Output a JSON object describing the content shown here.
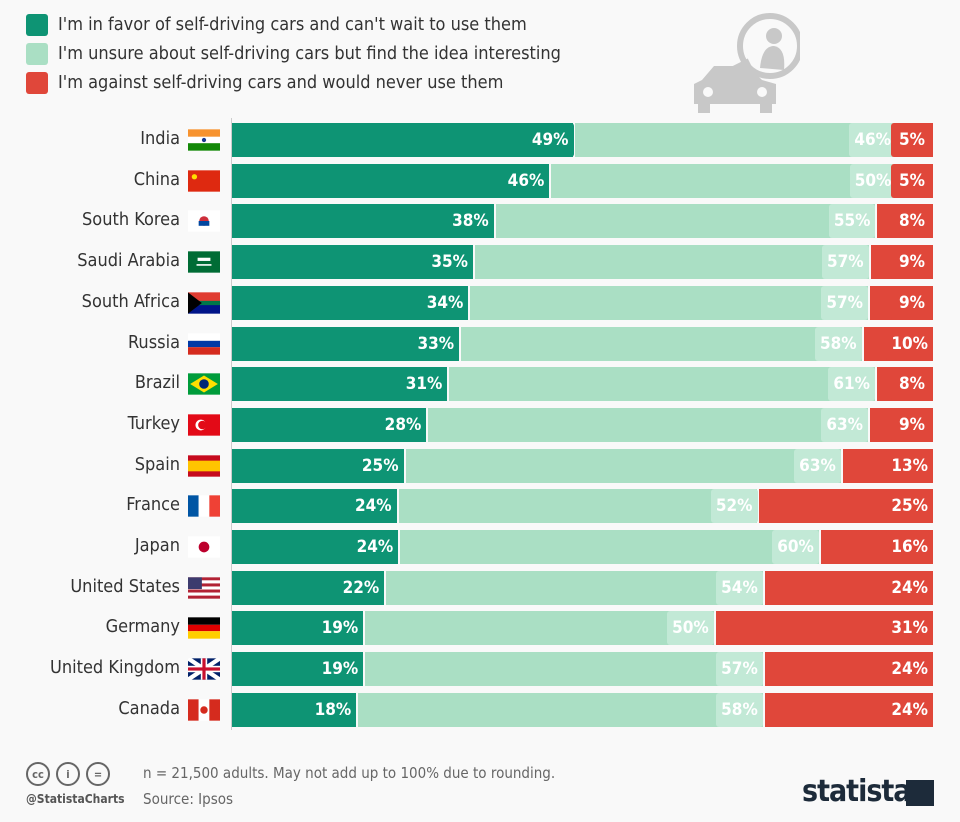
{
  "chart_data": {
    "type": "bar",
    "orientation": "horizontal",
    "stacked": true,
    "legend_position": "top-left",
    "categories": [
      "India",
      "China",
      "South Korea",
      "Saudi Arabia",
      "South Africa",
      "Russia",
      "Brazil",
      "Turkey",
      "Spain",
      "France",
      "Japan",
      "United States",
      "Germany",
      "United Kingdom",
      "Canada"
    ],
    "series": [
      {
        "name": "I'm in favor of self-driving cars and can't wait to use them",
        "color": "#0e9474",
        "values": [
          49,
          46,
          38,
          35,
          34,
          33,
          31,
          28,
          25,
          24,
          24,
          22,
          19,
          19,
          18
        ]
      },
      {
        "name": "I'm unsure about self-driving cars but find the idea interesting",
        "color": "#aadfc4",
        "values": [
          46,
          50,
          55,
          57,
          57,
          58,
          61,
          63,
          63,
          52,
          60,
          54,
          50,
          57,
          58
        ]
      },
      {
        "name": "I'm against self-driving cars and would never use them",
        "color": "#e0473a",
        "values": [
          5,
          5,
          8,
          9,
          9,
          10,
          8,
          9,
          13,
          25,
          16,
          24,
          31,
          24,
          24
        ]
      }
    ],
    "value_suffix": "%",
    "flags": [
      "india-flag-icon",
      "china-flag-icon",
      "south-korea-flag-icon",
      "saudi-arabia-flag-icon",
      "south-africa-flag-icon",
      "russia-flag-icon",
      "brazil-flag-icon",
      "turkey-flag-icon",
      "spain-flag-icon",
      "france-flag-icon",
      "japan-flag-icon",
      "united-states-flag-icon",
      "germany-flag-icon",
      "united-kingdom-flag-icon",
      "canada-flag-icon"
    ]
  },
  "footer": {
    "note": "n = 21,500 adults. May not add up to 100% due to rounding.",
    "source": "Source: Ipsos",
    "handle": "@StatistaCharts",
    "brand": "statista",
    "license_icons": [
      "cc",
      "by",
      "nd"
    ]
  }
}
